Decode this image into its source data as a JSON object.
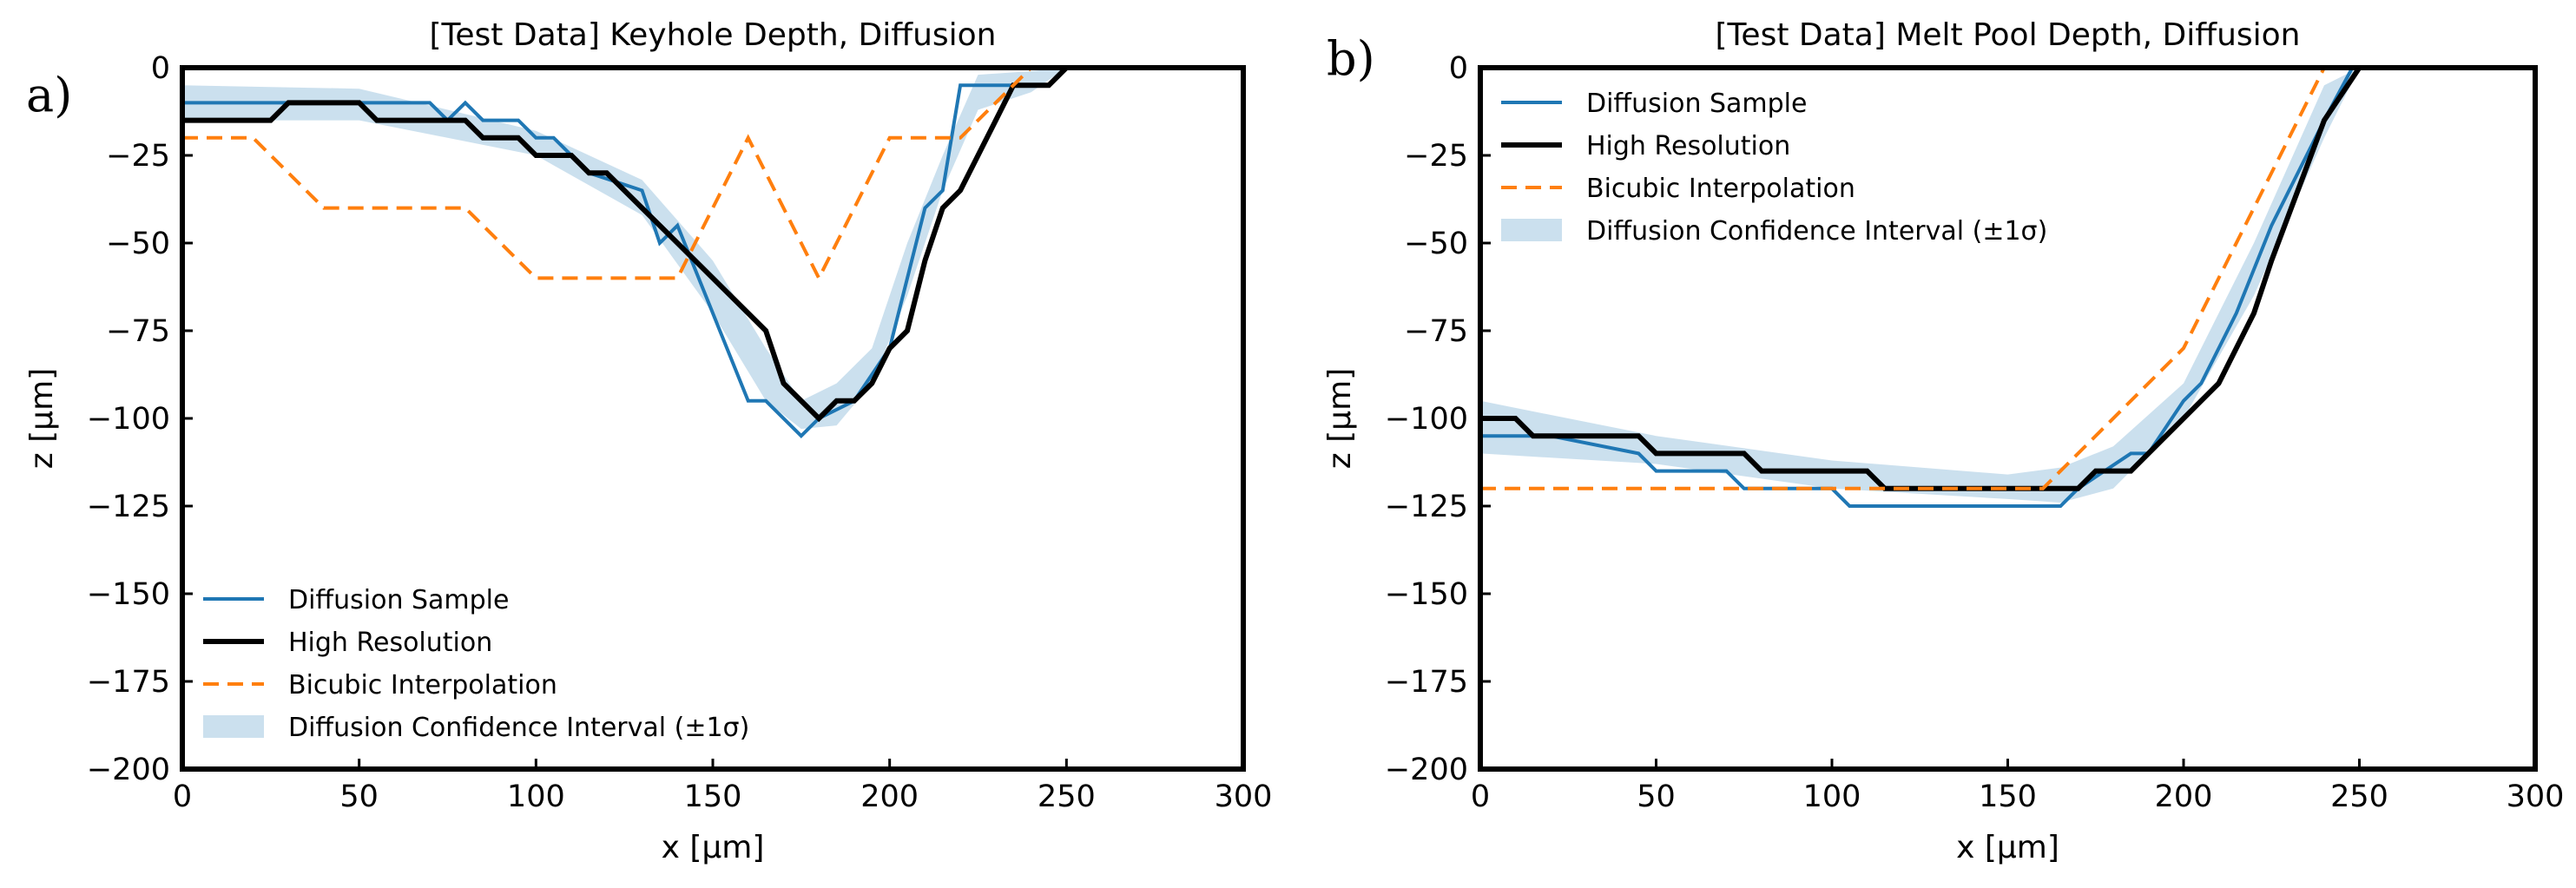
{
  "panel_labels": [
    "a)",
    "b)"
  ],
  "chart_data": [
    {
      "type": "line",
      "title": "[Test Data] Keyhole Depth, Diffusion",
      "xlabel": "x [μm]",
      "ylabel": "z [μm]",
      "xlim": [
        0,
        300
      ],
      "ylim": [
        -200,
        0
      ],
      "xticks": [
        0,
        50,
        100,
        150,
        200,
        250,
        300
      ],
      "yticks": [
        0,
        -25,
        -50,
        -75,
        -100,
        -125,
        -150,
        -175,
        -200
      ],
      "legend_position": "lower-left",
      "legend": [
        "Diffusion Sample",
        "High Resolution",
        "Bicubic Interpolation",
        "Diffusion Confidence Interval (±1σ)"
      ],
      "colors": {
        "sample": "#1f77b4",
        "highres": "#000000",
        "bicubic": "#ff7f0e",
        "band": "#a9cce3"
      },
      "series": [
        {
          "name": "Diffusion Sample",
          "style": "solid",
          "x": [
            0,
            70,
            75,
            80,
            85,
            95,
            100,
            105,
            115,
            130,
            135,
            140,
            150,
            160,
            165,
            175,
            180,
            190,
            200,
            210,
            215,
            220,
            225,
            235,
            245
          ],
          "y": [
            -10,
            -10,
            -15,
            -10,
            -15,
            -15,
            -20,
            -20,
            -30,
            -35,
            -50,
            -45,
            -70,
            -95,
            -95,
            -105,
            -100,
            -95,
            -80,
            -40,
            -35,
            -5,
            -5,
            -5,
            -5
          ]
        },
        {
          "name": "High Resolution",
          "style": "solid",
          "x": [
            0,
            25,
            30,
            50,
            55,
            80,
            85,
            95,
            100,
            110,
            115,
            120,
            130,
            140,
            150,
            165,
            170,
            180,
            185,
            190,
            195,
            200,
            205,
            210,
            215,
            220,
            225,
            230,
            235,
            240,
            245,
            250
          ],
          "y": [
            -15,
            -15,
            -10,
            -10,
            -15,
            -15,
            -20,
            -20,
            -25,
            -25,
            -30,
            -30,
            -40,
            -50,
            -60,
            -75,
            -90,
            -100,
            -95,
            -95,
            -90,
            -80,
            -75,
            -55,
            -40,
            -35,
            -25,
            -15,
            -5,
            -5,
            -5,
            0
          ]
        },
        {
          "name": "Bicubic Interpolation",
          "style": "dashed",
          "x": [
            0,
            20,
            40,
            80,
            100,
            140,
            160,
            180,
            200,
            220,
            240
          ],
          "y": [
            -20,
            -20,
            -40,
            -40,
            -60,
            -60,
            -20,
            -60,
            -20,
            -20,
            0
          ]
        }
      ],
      "band": {
        "name": "Diffusion Confidence Interval (±1σ)",
        "x": [
          0,
          50,
          100,
          130,
          150,
          165,
          175,
          185,
          195,
          205,
          215,
          225,
          240,
          250
        ],
        "lower": [
          -15,
          -15,
          -25,
          -42,
          -70,
          -95,
          -103,
          -102,
          -90,
          -65,
          -35,
          -12,
          -7,
          0
        ],
        "upper": [
          -5,
          -6,
          -18,
          -32,
          -55,
          -80,
          -95,
          -90,
          -80,
          -50,
          -25,
          -2,
          -1,
          0
        ]
      }
    },
    {
      "type": "line",
      "title": "[Test Data] Melt Pool Depth, Diffusion",
      "xlabel": "x [μm]",
      "ylabel": "z [μm]",
      "xlim": [
        0,
        300
      ],
      "ylim": [
        -200,
        0
      ],
      "xticks": [
        0,
        50,
        100,
        150,
        200,
        250,
        300
      ],
      "yticks": [
        0,
        -25,
        -50,
        -75,
        -100,
        -125,
        -150,
        -175,
        -200
      ],
      "legend_position": "upper-left",
      "legend": [
        "Diffusion Sample",
        "High Resolution",
        "Bicubic Interpolation",
        "Diffusion Confidence Interval (±1σ)"
      ],
      "colors": {
        "sample": "#1f77b4",
        "highres": "#000000",
        "bicubic": "#ff7f0e",
        "band": "#a9cce3"
      },
      "series": [
        {
          "name": "Diffusion Sample",
          "style": "solid",
          "x": [
            0,
            20,
            45,
            50,
            70,
            75,
            100,
            105,
            165,
            170,
            185,
            190,
            200,
            205,
            215,
            225,
            240,
            248
          ],
          "y": [
            -105,
            -105,
            -110,
            -115,
            -115,
            -120,
            -120,
            -125,
            -125,
            -120,
            -110,
            -110,
            -95,
            -90,
            -70,
            -45,
            -15,
            0
          ]
        },
        {
          "name": "High Resolution",
          "style": "solid",
          "x": [
            0,
            10,
            15,
            45,
            50,
            75,
            80,
            110,
            115,
            170,
            175,
            185,
            200,
            210,
            220,
            225,
            240,
            250
          ],
          "y": [
            -100,
            -100,
            -105,
            -105,
            -110,
            -110,
            -115,
            -115,
            -120,
            -120,
            -115,
            -115,
            -100,
            -90,
            -70,
            -55,
            -15,
            0
          ]
        },
        {
          "name": "Bicubic Interpolation",
          "style": "dashed",
          "x": [
            0,
            160,
            200,
            240
          ],
          "y": [
            -120,
            -120,
            -80,
            0
          ]
        }
      ],
      "band": {
        "name": "Diffusion Confidence Interval (±1σ)",
        "x": [
          0,
          50,
          100,
          150,
          165,
          180,
          200,
          220,
          240,
          250
        ],
        "lower": [
          -110,
          -113,
          -120,
          -123,
          -124,
          -120,
          -100,
          -65,
          -20,
          0
        ],
        "upper": [
          -95,
          -105,
          -112,
          -116,
          -114,
          -108,
          -90,
          -50,
          -5,
          0
        ]
      }
    }
  ]
}
